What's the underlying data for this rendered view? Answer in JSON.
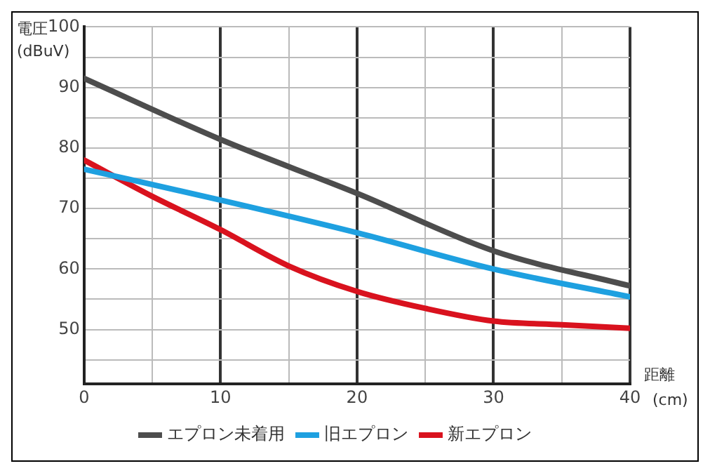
{
  "chart_data": {
    "type": "line",
    "ylabel": "電圧\n(dBuV)",
    "xlabel": "距離\n(cm)",
    "xlim": [
      0,
      40
    ],
    "xticks": [
      0,
      {
        "value": 5,
        "label": null
      },
      10,
      {
        "value": 15,
        "label": null
      },
      20,
      {
        "value": 25,
        "label": null
      },
      30,
      {
        "value": 35,
        "label": null
      },
      40
    ],
    "ylim": [
      41,
      100
    ],
    "yticks": [
      {
        "value": 45,
        "label": null
      },
      50,
      {
        "value": 55,
        "label": null
      },
      60,
      {
        "value": 65,
        "label": null
      },
      70,
      {
        "value": 75,
        "label": null
      },
      80,
      {
        "value": 85,
        "label": null
      },
      90,
      {
        "value": 95,
        "label": null
      },
      100
    ],
    "grid": true,
    "legend": "bottom",
    "marker": "none",
    "line_style": "solid",
    "series": [
      {
        "name": "エプロン未着用",
        "color": "#4d4d4d",
        "x": [
          0,
          10,
          20,
          30,
          40
        ],
        "values": [
          91.5,
          81.4,
          72.5,
          63,
          57.2
        ]
      },
      {
        "name": "旧エプロン",
        "color": "#1ea0e0",
        "x": [
          0,
          10,
          20,
          30,
          40
        ],
        "values": [
          76.5,
          71.4,
          66,
          60,
          55.4
        ]
      },
      {
        "name": "新エプロン",
        "color": "#d9121e",
        "x": [
          0,
          5,
          10,
          15,
          20,
          25,
          30,
          35,
          40
        ],
        "values": [
          78,
          72,
          66.5,
          60.5,
          56.3,
          53.5,
          51.4,
          50.8,
          50.2
        ]
      }
    ]
  }
}
